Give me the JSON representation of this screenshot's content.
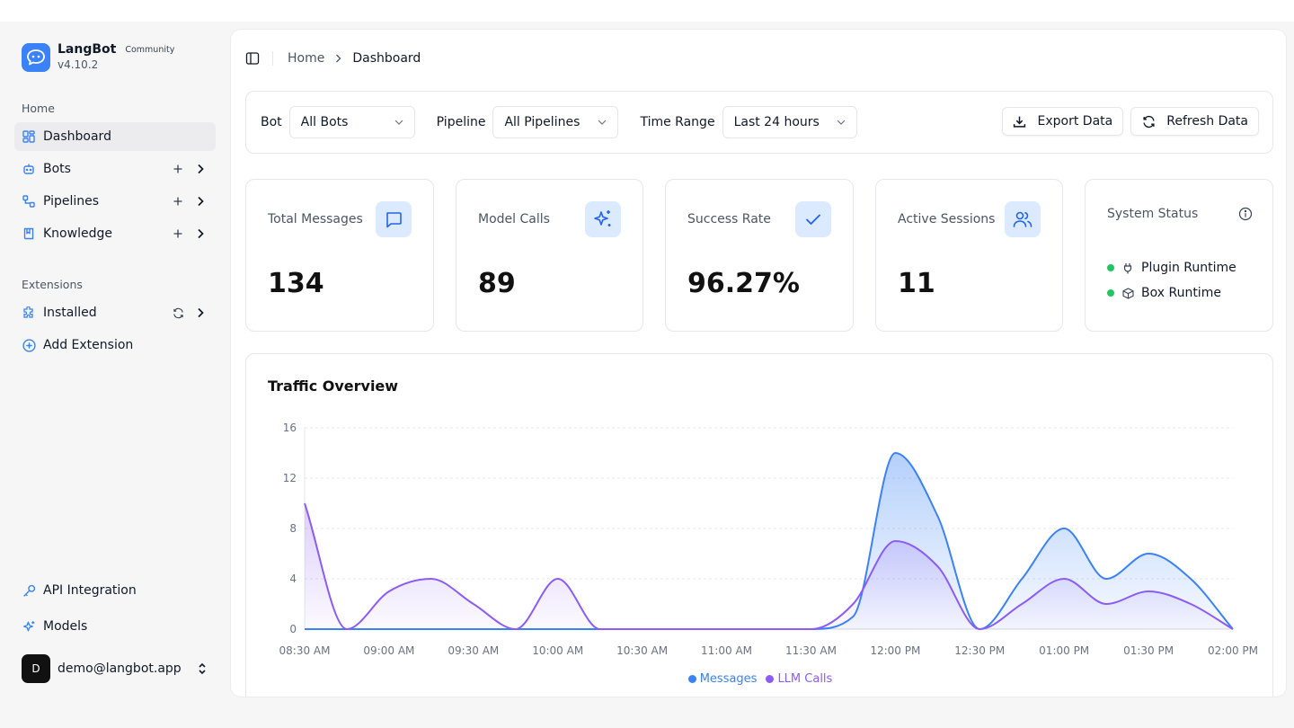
{
  "brand": {
    "name": "LangBot",
    "tag": "Community",
    "version": "v4.10.2"
  },
  "sidebar": {
    "home_label": "Home",
    "extensions_label": "Extensions",
    "items": [
      {
        "label": "Dashboard",
        "icon": "dashboard-icon"
      },
      {
        "label": "Bots",
        "icon": "bot-icon"
      },
      {
        "label": "Pipelines",
        "icon": "pipeline-icon"
      },
      {
        "label": "Knowledge",
        "icon": "book-icon"
      },
      {
        "label": "Installed",
        "icon": "puzzle-icon"
      },
      {
        "label": "Add Extension",
        "icon": "plus-circle-icon"
      }
    ],
    "bottom": [
      {
        "label": "API Integration",
        "icon": "key-icon"
      },
      {
        "label": "Models",
        "icon": "sparkles-icon"
      }
    ]
  },
  "user": {
    "initial": "D",
    "email": "demo@langbot.app"
  },
  "breadcrumb": {
    "home": "Home",
    "current": "Dashboard"
  },
  "filters": {
    "bot_label": "Bot",
    "bot_value": "All Bots",
    "pipeline_label": "Pipeline",
    "pipeline_value": "All Pipelines",
    "time_label": "Time Range",
    "time_value": "Last 24 hours",
    "export_label": "Export Data",
    "refresh_label": "Refresh Data"
  },
  "stats": {
    "total_messages": {
      "title": "Total Messages",
      "value": "134"
    },
    "model_calls": {
      "title": "Model Calls",
      "value": "89"
    },
    "success_rate": {
      "title": "Success Rate",
      "value": "96.27%"
    },
    "active_sessions": {
      "title": "Active Sessions",
      "value": "11"
    }
  },
  "system_status": {
    "title": "System Status",
    "items": [
      {
        "label": "Plugin Runtime",
        "state": "online"
      },
      {
        "label": "Box Runtime",
        "state": "online"
      }
    ]
  },
  "colors": {
    "accent": "#3b82f6",
    "messages": "#3b82f6",
    "llm_calls": "#8b5cf6",
    "status_ok": "#22c55e"
  },
  "chart_data": {
    "type": "area",
    "title": "Traffic Overview",
    "x": [
      "08:30 AM",
      "08:45 AM",
      "09:00 AM",
      "09:15 AM",
      "09:30 AM",
      "09:45 AM",
      "10:00 AM",
      "10:15 AM",
      "10:30 AM",
      "10:45 AM",
      "11:00 AM",
      "11:15 AM",
      "11:30 AM",
      "11:45 AM",
      "12:00 PM",
      "12:15 PM",
      "12:30 PM",
      "12:45 PM",
      "01:00 PM",
      "01:15 PM",
      "01:30 PM",
      "01:45 PM",
      "02:00 PM"
    ],
    "x_tick_labels": [
      "08:30 AM",
      "09:00 AM",
      "09:30 AM",
      "10:00 AM",
      "10:30 AM",
      "11:00 AM",
      "11:30 AM",
      "12:00 PM",
      "12:30 PM",
      "01:00 PM",
      "01:30 PM",
      "02:00 PM"
    ],
    "yticks": [
      0,
      4,
      8,
      12,
      16
    ],
    "ylim": [
      0,
      16
    ],
    "grid": true,
    "legend_position": "bottom",
    "series": [
      {
        "name": "Messages",
        "values": [
          0,
          0,
          0,
          0,
          0,
          0,
          0,
          0,
          0,
          0,
          0,
          0,
          0,
          1,
          14,
          9,
          0,
          4,
          8,
          4,
          6,
          4,
          0
        ]
      },
      {
        "name": "LLM Calls",
        "values": [
          10,
          0,
          3,
          4,
          2,
          0,
          4,
          0,
          0,
          0,
          0,
          0,
          0,
          2,
          7,
          5,
          0,
          2,
          4,
          2,
          3,
          2,
          0
        ]
      }
    ]
  }
}
